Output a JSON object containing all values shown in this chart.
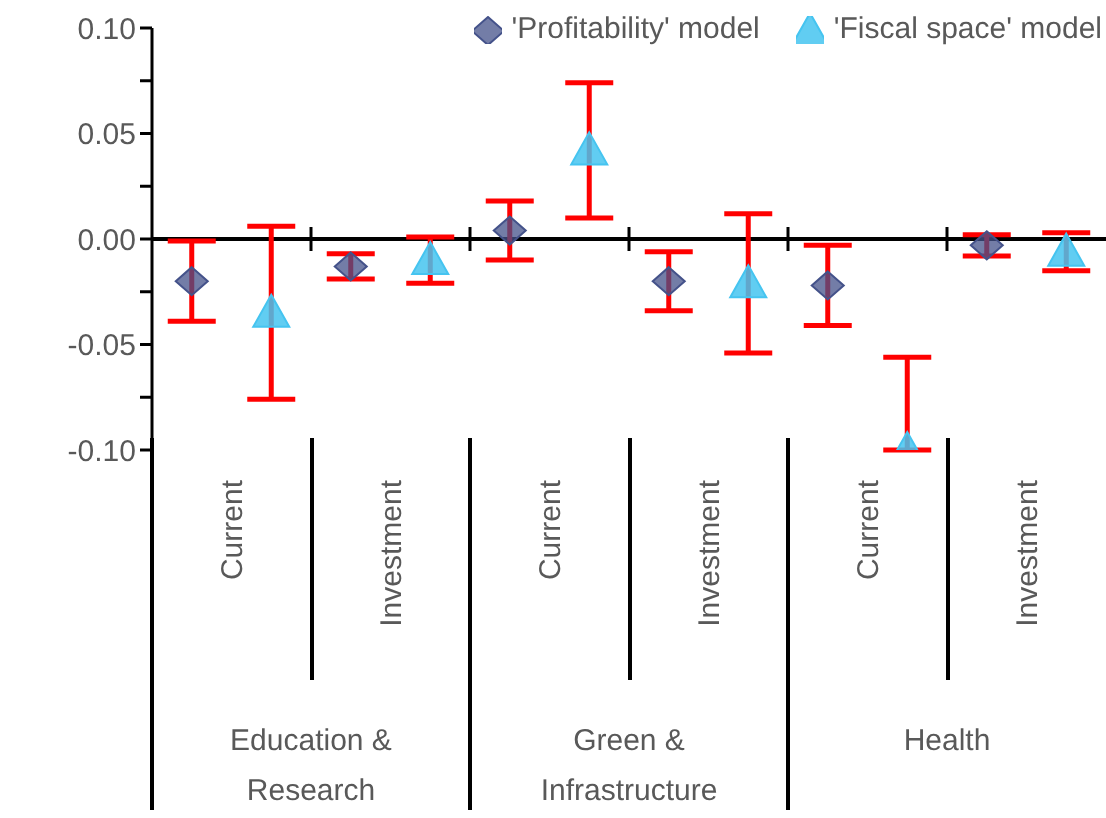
{
  "chart_data": {
    "type": "scatter",
    "categories": [
      "Current",
      "Investment",
      "Current",
      "Investment",
      "Current",
      "Investment"
    ],
    "annotations": [
      "Education & Research",
      "Green & Infrastructure",
      "Health"
    ],
    "series": [
      {
        "name": "'Profitability' model",
        "color": "#44528a",
        "marker": "diamond",
        "values": [
          -0.02,
          -0.013,
          0.004,
          -0.02,
          -0.022,
          -0.003
        ],
        "errors": [
          0.019,
          0.006,
          0.014,
          0.014,
          0.019,
          0.005
        ]
      },
      {
        "name": "'Fiscal space' model",
        "color": "#45c4f0",
        "marker": "triangle",
        "values": [
          -0.035,
          -0.01,
          0.042,
          -0.021,
          -0.1,
          -0.006
        ],
        "errors": [
          0.041,
          0.011,
          0.032,
          0.033,
          [
            -0.1,
            -0.056
          ],
          0.009
        ]
      }
    ],
    "ylim": [
      -0.1,
      0.1
    ],
    "yticks": [
      {
        "value": -0.1,
        "label": "-0.10"
      },
      {
        "value": -0.075,
        "label": null
      },
      {
        "value": -0.05,
        "label": "-0.05"
      },
      {
        "value": -0.025,
        "label": null
      },
      {
        "value": 0,
        "label": "0.00"
      },
      {
        "value": 0.025,
        "label": null
      },
      {
        "value": 0.05,
        "label": "0.05"
      },
      {
        "value": 0.075,
        "label": null
      },
      {
        "value": 0.1,
        "label": "0.10"
      }
    ],
    "ref_lines": [
      {
        "axis": "y",
        "value": 0,
        "color": "#000000"
      }
    ],
    "legend": "top right"
  }
}
